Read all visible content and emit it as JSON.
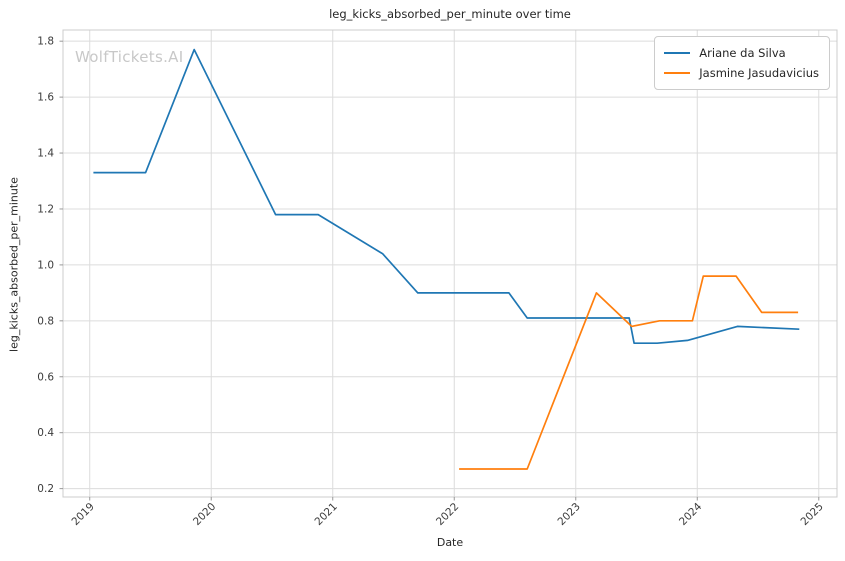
{
  "title": "leg_kicks_absorbed_per_minute over time",
  "watermark": "WolfTickets.AI",
  "chart_data": {
    "type": "line",
    "title": "leg_kicks_absorbed_per_minute over time",
    "xlabel": "Date",
    "ylabel": "leg_kicks_absorbed_per_minute",
    "grid": true,
    "legend_position": "upper right",
    "xlim": [
      2018.78,
      2025.15
    ],
    "ylim": [
      0.17,
      1.84
    ],
    "x_ticks": [
      "2019",
      "2020",
      "2021",
      "2022",
      "2023",
      "2024",
      "2025"
    ],
    "y_ticks": [
      "0.2",
      "0.4",
      "0.6",
      "0.8",
      "1.0",
      "1.2",
      "1.4",
      "1.6",
      "1.8"
    ],
    "series": [
      {
        "name": "Ariane da Silva",
        "color": "#1f77b4",
        "points": [
          [
            2019.03,
            1.33
          ],
          [
            2019.46,
            1.33
          ],
          [
            2019.86,
            1.77
          ],
          [
            2020.53,
            1.18
          ],
          [
            2020.88,
            1.18
          ],
          [
            2021.41,
            1.04
          ],
          [
            2021.7,
            0.9
          ],
          [
            2022.45,
            0.9
          ],
          [
            2022.6,
            0.81
          ],
          [
            2023.44,
            0.81
          ],
          [
            2023.48,
            0.72
          ],
          [
            2023.67,
            0.72
          ],
          [
            2023.92,
            0.73
          ],
          [
            2024.33,
            0.78
          ],
          [
            2024.84,
            0.77
          ]
        ]
      },
      {
        "name": "Jasmine Jasudavicius",
        "color": "#ff7f0e",
        "points": [
          [
            2022.04,
            0.27
          ],
          [
            2022.6,
            0.27
          ],
          [
            2023.17,
            0.9
          ],
          [
            2023.46,
            0.78
          ],
          [
            2023.69,
            0.8
          ],
          [
            2023.96,
            0.8
          ],
          [
            2024.05,
            0.96
          ],
          [
            2024.32,
            0.96
          ],
          [
            2024.53,
            0.83
          ],
          [
            2024.83,
            0.83
          ]
        ]
      }
    ],
    "style": {
      "grid_color": "#dcdcdc",
      "spine_color": "#cccccc",
      "tick_color": "#999999",
      "tick_label_color": "#3b3b3b"
    }
  }
}
